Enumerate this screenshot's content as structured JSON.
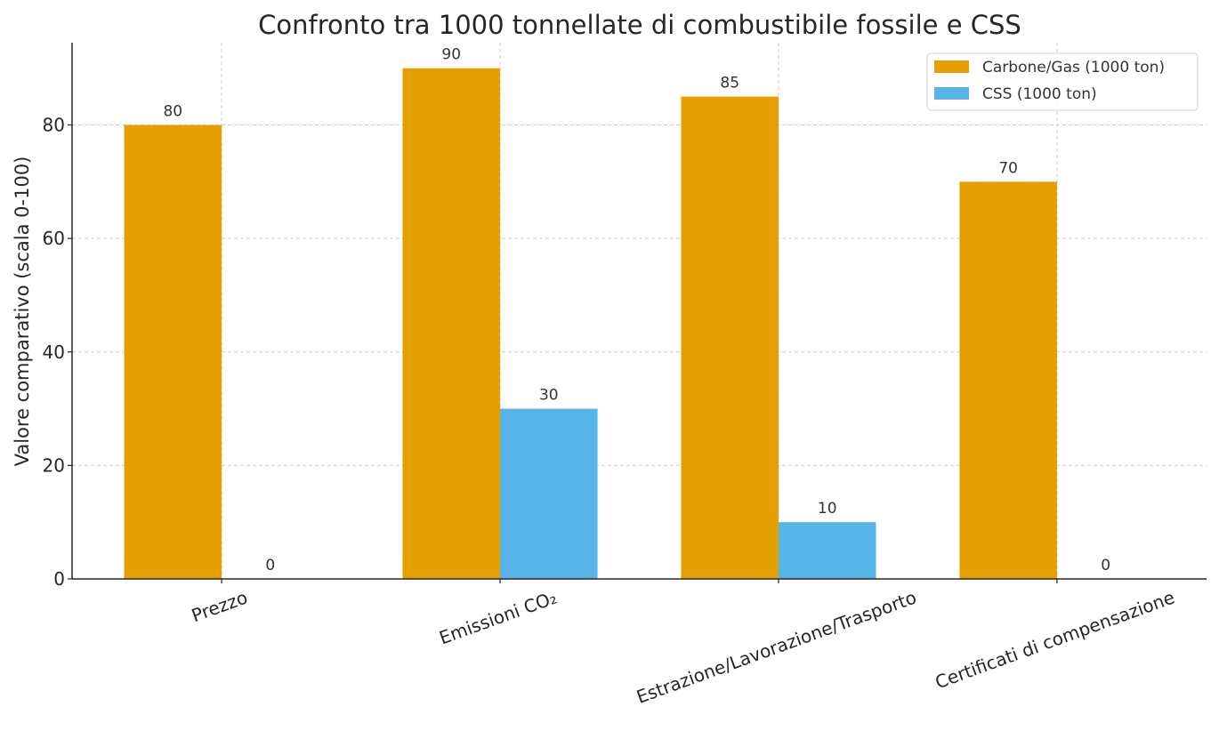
{
  "chart_data": {
    "type": "bar",
    "title": "Confronto tra 1000 tonnellate di combustibile fossile e CSS",
    "xlabel": "",
    "ylabel": "Valore comparativo (scala 0-100)",
    "categories": [
      "Prezzo",
      "Emissioni CO₂",
      "Estrazione/Lavorazione/Trasporto",
      "Certificati di compensazione"
    ],
    "series": [
      {
        "name": "Carbone/Gas (1000 ton)",
        "color": "#E69F00",
        "values": [
          80,
          90,
          85,
          70
        ]
      },
      {
        "name": "CSS (1000 ton)",
        "color": "#56B4E9",
        "values": [
          0,
          30,
          10,
          0
        ]
      }
    ],
    "ylim": [
      0,
      94.5
    ],
    "yticks": [
      0,
      20,
      40,
      60,
      80
    ],
    "grid": true,
    "legend": "top-right",
    "data_labels": true
  }
}
